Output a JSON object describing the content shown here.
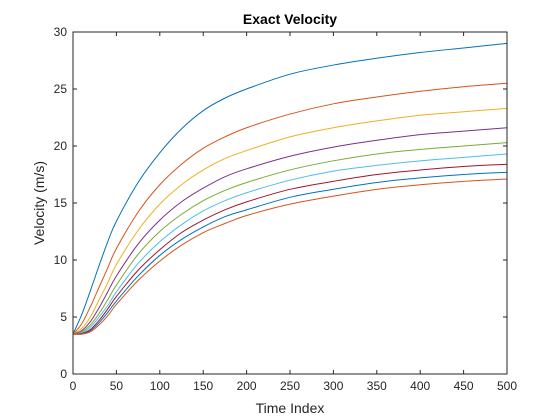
{
  "chart_data": {
    "type": "line",
    "title": "Exact Velocity",
    "xlabel": "Time Index",
    "ylabel": "Velocity (m/s)",
    "xlim": [
      0,
      500
    ],
    "ylim": [
      0,
      30
    ],
    "xticks": [
      0,
      50,
      100,
      150,
      200,
      250,
      300,
      350,
      400,
      450,
      500
    ],
    "yticks": [
      0,
      5,
      10,
      15,
      20,
      25,
      30
    ],
    "grid": false,
    "legend": "none",
    "x": [
      0,
      10,
      20,
      30,
      40,
      50,
      75,
      100,
      125,
      150,
      175,
      200,
      250,
      300,
      350,
      400,
      450,
      500
    ],
    "series": [
      {
        "color": "#0072BD",
        "values": [
          3.5,
          5.2,
          7.3,
          9.5,
          11.6,
          13.4,
          16.8,
          19.4,
          21.5,
          23.1,
          24.2,
          25.0,
          26.3,
          27.1,
          27.7,
          28.2,
          28.6,
          29.0
        ]
      },
      {
        "color": "#D95319",
        "values": [
          3.5,
          4.4,
          5.9,
          7.6,
          9.3,
          11.0,
          14.2,
          16.6,
          18.4,
          19.8,
          20.8,
          21.6,
          22.8,
          23.7,
          24.3,
          24.8,
          25.2,
          25.5
        ]
      },
      {
        "color": "#EDB120",
        "values": [
          3.5,
          4.0,
          5.0,
          6.5,
          8.0,
          9.6,
          12.6,
          14.9,
          16.6,
          17.9,
          18.9,
          19.6,
          20.8,
          21.6,
          22.2,
          22.7,
          23.0,
          23.3
        ]
      },
      {
        "color": "#7E2F8E",
        "values": [
          3.5,
          3.8,
          4.6,
          5.8,
          7.2,
          8.6,
          11.4,
          13.5,
          15.1,
          16.3,
          17.3,
          18.0,
          19.1,
          19.9,
          20.5,
          21.0,
          21.3,
          21.6
        ]
      },
      {
        "color": "#77AC30",
        "values": [
          3.5,
          3.7,
          4.3,
          5.3,
          6.5,
          7.8,
          10.5,
          12.5,
          14.0,
          15.2,
          16.1,
          16.8,
          17.9,
          18.7,
          19.3,
          19.7,
          20.0,
          20.3
        ]
      },
      {
        "color": "#4DBEEE",
        "values": [
          3.5,
          3.6,
          4.1,
          5.0,
          6.0,
          7.2,
          9.7,
          11.6,
          13.1,
          14.3,
          15.2,
          15.9,
          17.0,
          17.8,
          18.3,
          18.7,
          19.0,
          19.3
        ]
      },
      {
        "color": "#A2142F",
        "values": [
          3.5,
          3.55,
          3.9,
          4.7,
          5.7,
          6.8,
          9.1,
          10.9,
          12.4,
          13.5,
          14.4,
          15.1,
          16.2,
          16.9,
          17.5,
          17.9,
          18.2,
          18.4
        ]
      },
      {
        "color": "#0072BD",
        "values": [
          3.5,
          3.5,
          3.8,
          4.5,
          5.4,
          6.4,
          8.6,
          10.4,
          11.8,
          12.9,
          13.8,
          14.4,
          15.5,
          16.2,
          16.8,
          17.2,
          17.5,
          17.7
        ]
      },
      {
        "color": "#D95319",
        "values": [
          3.5,
          3.5,
          3.7,
          4.3,
          5.1,
          6.1,
          8.2,
          9.9,
          11.3,
          12.4,
          13.2,
          13.9,
          14.9,
          15.6,
          16.2,
          16.6,
          16.9,
          17.1
        ]
      }
    ]
  }
}
